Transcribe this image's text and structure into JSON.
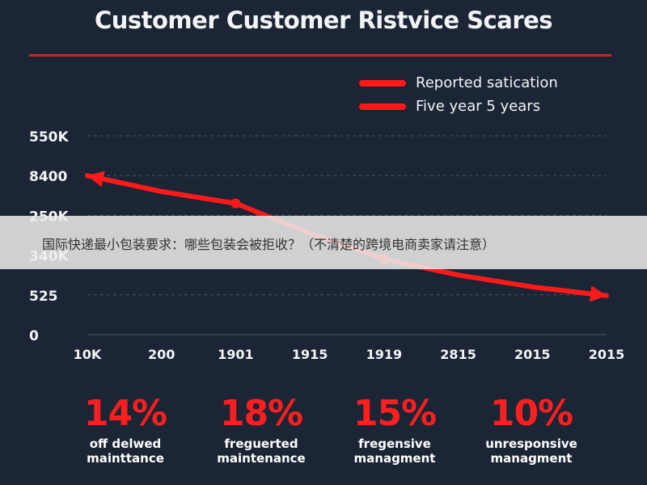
{
  "title": "Customer Customer Ristvice Scares",
  "legend": [
    {
      "label": "Reported satication"
    },
    {
      "label": "Five year 5 years"
    }
  ],
  "colors": {
    "background": "#1b2535",
    "accent": "#ff1a1a",
    "rule": "#d62020",
    "grid": "#4a5566",
    "text": "#f2f4f7"
  },
  "chart_data": {
    "type": "line",
    "title": "Customer Customer Ristvice Scares",
    "xlabel": "",
    "ylabel": "",
    "categories": [
      "10K",
      "200",
      "1901",
      "1915",
      "1919",
      "2815",
      "2015",
      "2015"
    ],
    "y_tick_labels": [
      "0",
      "525",
      "340K",
      "250K",
      "8400",
      "550K"
    ],
    "ylim": [
      0,
      5
    ],
    "grid": true,
    "legend_position": "top-right",
    "series": [
      {
        "name": "Reported satication",
        "values": [
          4.0,
          3.6,
          3.3,
          2.55,
          1.9,
          1.5,
          1.2,
          0.98
        ],
        "markers": [
          false,
          false,
          true,
          false,
          true,
          false,
          false,
          false
        ],
        "arrow_start": true,
        "arrow_end": true
      }
    ]
  },
  "stats": [
    {
      "value": "14%",
      "label": "off delwed\nmainttance"
    },
    {
      "value": "18%",
      "label": "freguerted\nmaintenance"
    },
    {
      "value": "15%",
      "label": "fregensive\nmanagment"
    },
    {
      "value": "10%",
      "label": "unresponsive\nmanagment"
    }
  ],
  "overlay": {
    "text": "国际快递最小包装要求：哪些包装会被拒收？（不清楚的跨境电商卖家请注意）"
  }
}
